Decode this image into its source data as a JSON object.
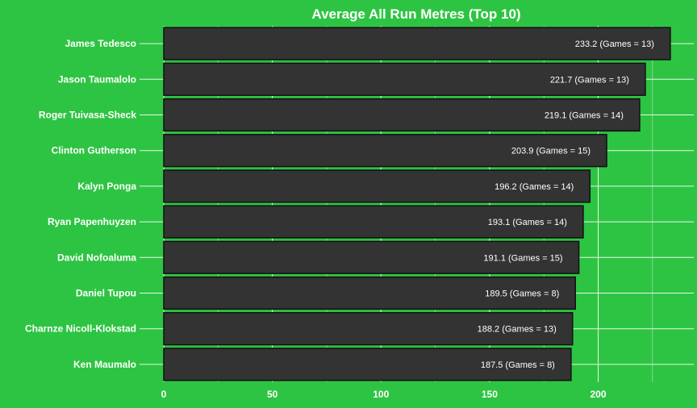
{
  "chart_data": {
    "type": "bar",
    "orientation": "horizontal",
    "title": "Average All Run Metres (Top 10)",
    "xlabel": "",
    "ylabel": "",
    "xlim": [
      0,
      244
    ],
    "x_ticks": [
      0,
      50,
      100,
      150,
      200
    ],
    "x_tick_labels": [
      "0",
      "50",
      "100",
      "150",
      "200"
    ],
    "grid": true,
    "categories": [
      "James Tedesco",
      "Jason Taumalolo",
      "Roger Tuivasa-Sheck",
      "Clinton Gutherson",
      "Kalyn Ponga",
      "Ryan Papenhuyzen",
      "David Nofoaluma",
      "Daniel Tupou",
      "Charnze Nicoll-Klokstad",
      "Ken Maumalo"
    ],
    "values": [
      233.2,
      221.7,
      219.1,
      203.9,
      196.2,
      193.1,
      191.1,
      189.5,
      188.2,
      187.5
    ],
    "data_labels": [
      "233.2 (Games = 13)",
      "221.7 (Games = 13)",
      "219.1 (Games = 14)",
      "203.9 (Games = 15)",
      "196.2 (Games = 14)",
      "193.1 (Games = 14)",
      "191.1 (Games = 15)",
      "189.5 (Games = 8)",
      "188.2 (Games = 13)",
      "187.5 (Games = 8)"
    ],
    "colors": {
      "background": "#2ec443",
      "bar_fill": "#333333",
      "bar_edge": "#111111",
      "text": "#ffffff",
      "grid": "#e8f5e9"
    }
  }
}
